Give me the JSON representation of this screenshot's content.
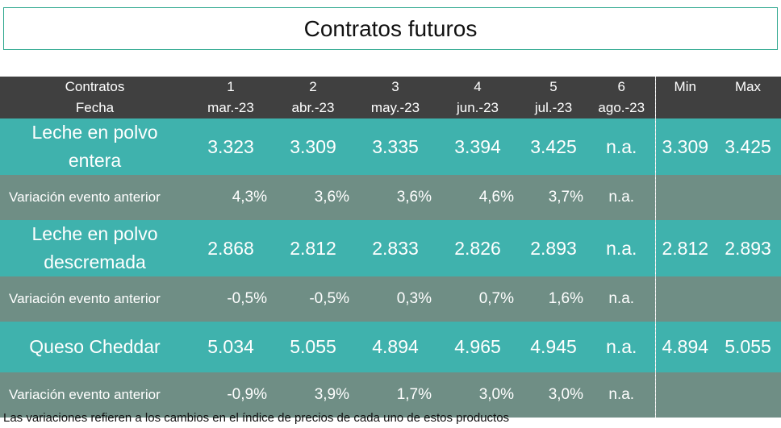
{
  "title": "Contratos futuros",
  "header": {
    "label_line1": "Contratos",
    "label_line2": "Fecha",
    "contracts": [
      {
        "num": "1",
        "date": "mar.-23"
      },
      {
        "num": "2",
        "date": "abr.-23"
      },
      {
        "num": "3",
        "date": "may.-23"
      },
      {
        "num": "4",
        "date": "jun.-23"
      },
      {
        "num": "5",
        "date": "jul.-23"
      },
      {
        "num": "6",
        "date": "ago.-23"
      }
    ],
    "min_label": "Min",
    "max_label": "Max"
  },
  "products": [
    {
      "name_line1": "Leche en polvo",
      "name_line2": "entera",
      "prices": [
        "3.323",
        "3.309",
        "3.335",
        "3.394",
        "3.425",
        "n.a."
      ],
      "min": "3.309",
      "max": "3.425",
      "variation_label": "Variación evento anterior",
      "variations": [
        "4,3%",
        "3,6%",
        "3,6%",
        "4,6%",
        "3,7%",
        "n.a."
      ]
    },
    {
      "name_line1": "Leche en polvo",
      "name_line2": "descremada",
      "prices": [
        "2.868",
        "2.812",
        "2.833",
        "2.826",
        "2.893",
        "n.a."
      ],
      "min": "2.812",
      "max": "2.893",
      "variation_label": "Variación evento anterior",
      "variations": [
        "-0,5%",
        "-0,5%",
        "0,3%",
        "0,7%",
        "1,6%",
        "n.a."
      ]
    },
    {
      "name_line1": "Queso Cheddar",
      "name_line2": "",
      "prices": [
        "5.034",
        "5.055",
        "4.894",
        "4.965",
        "4.945",
        "n.a."
      ],
      "min": "4.894",
      "max": "5.055",
      "variation_label": "Variación evento anterior",
      "variations": [
        "-0,9%",
        "3,9%",
        "1,7%",
        "3,0%",
        "3,0%",
        "n.a."
      ]
    }
  ],
  "footnote": "Las variaciones refieren a los cambios en el índice de precios de cada uno de estos productos"
}
